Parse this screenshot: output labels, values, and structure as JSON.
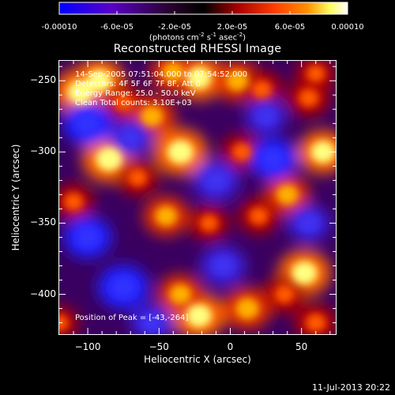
{
  "colorbar": {
    "ticks": [
      "-0.00010",
      "-6.0e-05",
      "-2.0e-05",
      "2.0e-05",
      "6.0e-05",
      "0.00010"
    ],
    "label_main": "(photons cm",
    "label_exp1": "-2",
    "label_mid": " s",
    "label_exp2": "-1",
    "label_end": " asec",
    "label_exp3": "-2",
    "label_close": ")",
    "range": [
      -0.0001,
      0.0001
    ]
  },
  "info": {
    "time_range": "14-Sep-2005 07:51:04.000 to 07:54:52.000",
    "detectors": "Detectors: 4F 5F 6F 7F 8F, Att 0",
    "energy": "Energy Range: 25.0 - 50.0 keV",
    "clean": "Clean     Total counts: 3.10E+03",
    "peak": "Position of Peak = [-43,-264]"
  },
  "chart_data": {
    "type": "heatmap",
    "title": "Reconstructed RHESSI Image",
    "xlabel": "Heliocentric X (arcsec)",
    "ylabel": "Heliocentric Y (arcsec)",
    "xlim": [
      -120,
      74
    ],
    "ylim": [
      -428,
      -236
    ],
    "xticks": [
      -100,
      -50,
      0,
      50
    ],
    "yticks": [
      -250,
      -300,
      -350,
      -400
    ],
    "xtick_labels": [
      "−100",
      "−50",
      "0",
      "50"
    ],
    "ytick_labels": [
      "−250",
      "−300",
      "−350",
      "−400"
    ],
    "colormap": [
      "#0000ff",
      "#5a00c8",
      "#2b0030",
      "#000000",
      "#aa0000",
      "#ff4000",
      "#ff9000",
      "#ffff60",
      "#ffffff"
    ],
    "blobs": [
      {
        "x": -105,
        "y": -258,
        "v": 1.0
      },
      {
        "x": -92,
        "y": -250,
        "v": 0.9
      },
      {
        "x": -75,
        "y": -265,
        "v": 0.55
      },
      {
        "x": -55,
        "y": -275,
        "v": 0.75
      },
      {
        "x": -22,
        "y": -248,
        "v": 0.9
      },
      {
        "x": -40,
        "y": -244,
        "v": 0.7
      },
      {
        "x": 5,
        "y": -250,
        "v": 0.75
      },
      {
        "x": 22,
        "y": -256,
        "v": 0.6
      },
      {
        "x": 55,
        "y": -262,
        "v": 0.6
      },
      {
        "x": 60,
        "y": -245,
        "v": 0.5
      },
      {
        "x": -85,
        "y": -305,
        "v": 1.0
      },
      {
        "x": -65,
        "y": -318,
        "v": 0.55
      },
      {
        "x": -35,
        "y": -300,
        "v": 1.0
      },
      {
        "x": 8,
        "y": -300,
        "v": 0.55
      },
      {
        "x": 40,
        "y": -330,
        "v": 0.7
      },
      {
        "x": 65,
        "y": -300,
        "v": 0.85
      },
      {
        "x": -110,
        "y": -335,
        "v": 0.55
      },
      {
        "x": -45,
        "y": -345,
        "v": 0.7
      },
      {
        "x": -15,
        "y": -350,
        "v": 0.5
      },
      {
        "x": 20,
        "y": -345,
        "v": 0.55
      },
      {
        "x": -22,
        "y": -415,
        "v": 0.95
      },
      {
        "x": -35,
        "y": -400,
        "v": 0.7
      },
      {
        "x": 12,
        "y": -410,
        "v": 0.8
      },
      {
        "x": 52,
        "y": -385,
        "v": 0.95
      },
      {
        "x": 38,
        "y": -400,
        "v": 0.6
      },
      {
        "x": 60,
        "y": -420,
        "v": 0.6
      },
      {
        "x": -120,
        "y": -420,
        "v": 0.45
      },
      {
        "x": -100,
        "y": -280,
        "v": -0.85
      },
      {
        "x": -70,
        "y": -290,
        "v": -0.6
      },
      {
        "x": -10,
        "y": -320,
        "v": -0.75
      },
      {
        "x": 30,
        "y": -305,
        "v": -0.8
      },
      {
        "x": 55,
        "y": -350,
        "v": -0.6
      },
      {
        "x": -100,
        "y": -360,
        "v": -0.8
      },
      {
        "x": -75,
        "y": -395,
        "v": -0.9
      },
      {
        "x": -5,
        "y": -380,
        "v": -0.7
      },
      {
        "x": 25,
        "y": -275,
        "v": -0.55
      },
      {
        "x": -55,
        "y": -420,
        "v": -0.6
      }
    ]
  },
  "timestamp": "11-Jul-2013 20:22"
}
